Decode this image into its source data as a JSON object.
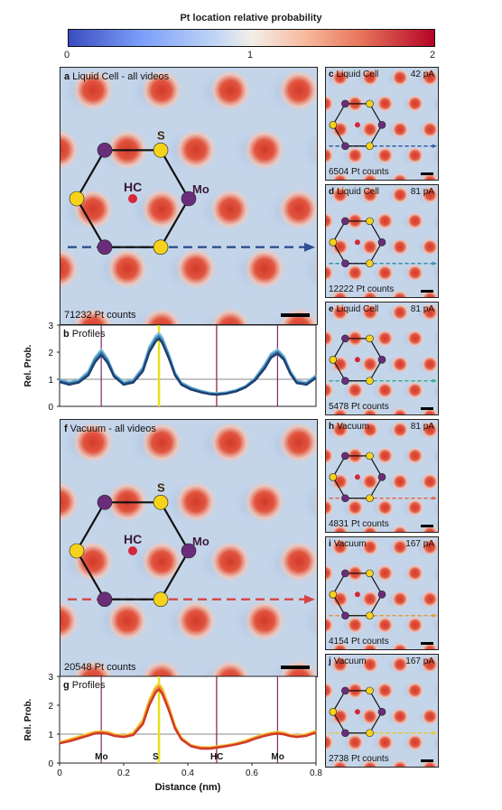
{
  "colorbar": {
    "title": "Pt location relative probability",
    "ticks": [
      "0",
      "1",
      "2"
    ],
    "range": [
      0,
      2
    ]
  },
  "main_panels": [
    {
      "letter": "a",
      "title": "Liquid Cell - all videos",
      "count": "71232 Pt counts",
      "hc_label": "HC",
      "s_label": "S",
      "mo_label": "Mo",
      "arrow_color": "#2f4f8f"
    },
    {
      "letter": "f",
      "title": "Vacuum - all videos",
      "count": "20548 Pt counts",
      "hc_label": "HC",
      "s_label": "S",
      "mo_label": "Mo",
      "arrow_color": "#d64545"
    }
  ],
  "side_panels": [
    {
      "letter": "c",
      "title": "Liquid Cell",
      "current": "42 pA",
      "count": "6504 Pt counts",
      "arrow_color": "#2f5f9f"
    },
    {
      "letter": "d",
      "title": "Liquid Cell",
      "current": "81 pA",
      "count": "12222 Pt counts",
      "arrow_color": "#3a8fb0"
    },
    {
      "letter": "e",
      "title": "Liquid Cell",
      "current": "81 pA",
      "count": "5478 Pt counts",
      "arrow_color": "#3ab08f"
    },
    {
      "letter": "h",
      "title": "Vacuum",
      "current": "81 pA",
      "count": "4831 Pt counts",
      "arrow_color": "#e06a50"
    },
    {
      "letter": "i",
      "title": "Vacuum",
      "current": "167 pA",
      "count": "4154 Pt counts",
      "arrow_color": "#e8963a"
    },
    {
      "letter": "j",
      "title": "Vacuum",
      "current": "167 pA",
      "count": "2738 Pt counts",
      "arrow_color": "#e8c830"
    }
  ],
  "colors": {
    "sulfur": "#f6d21a",
    "molybdenum": "#6a2d7a",
    "hollow_center": "#d6263a",
    "hot_spot": "#d23a2a",
    "background": "#c4d5ea",
    "mo_line": "#7a2a6a",
    "s_line": "#e8e01a",
    "hc_line": "#8a1a2a"
  },
  "chart_data": [
    {
      "type": "line",
      "panel": "b",
      "title": "Profiles",
      "ylabel": "Rel. Prob.",
      "ylim": [
        0,
        3
      ],
      "xlim": [
        0,
        0.8
      ],
      "yticks": [
        "0",
        "1",
        "2",
        "3"
      ],
      "reference_line": 1,
      "markers_x": [
        0.13,
        0.31,
        0.49,
        0.68
      ],
      "marker_labels": [
        "",
        "",
        "",
        ""
      ],
      "x": [
        0,
        0.03,
        0.06,
        0.09,
        0.11,
        0.13,
        0.15,
        0.17,
        0.2,
        0.23,
        0.26,
        0.28,
        0.3,
        0.31,
        0.32,
        0.34,
        0.36,
        0.38,
        0.41,
        0.44,
        0.47,
        0.49,
        0.52,
        0.55,
        0.58,
        0.61,
        0.64,
        0.66,
        0.68,
        0.7,
        0.72,
        0.74,
        0.77,
        0.8
      ],
      "series": [
        {
          "color": "#7fbfdc",
          "values": [
            1.0,
            0.9,
            0.98,
            1.3,
            1.8,
            2.1,
            1.75,
            1.2,
            0.9,
            0.98,
            1.45,
            2.2,
            2.6,
            2.7,
            2.55,
            1.95,
            1.25,
            0.88,
            0.7,
            0.58,
            0.5,
            0.48,
            0.52,
            0.6,
            0.75,
            1.05,
            1.55,
            1.95,
            2.1,
            1.85,
            1.3,
            0.95,
            0.88,
            1.15
          ]
        },
        {
          "color": "#3a7fb0",
          "values": [
            0.95,
            0.85,
            0.93,
            1.22,
            1.72,
            2.0,
            1.68,
            1.15,
            0.85,
            0.93,
            1.38,
            2.1,
            2.5,
            2.6,
            2.45,
            1.88,
            1.2,
            0.84,
            0.66,
            0.55,
            0.47,
            0.45,
            0.49,
            0.57,
            0.72,
            1.0,
            1.48,
            1.88,
            2.02,
            1.78,
            1.25,
            0.9,
            0.84,
            1.1
          ]
        },
        {
          "color": "#1e3f6f",
          "values": [
            0.9,
            0.8,
            0.88,
            1.15,
            1.62,
            1.9,
            1.6,
            1.1,
            0.8,
            0.88,
            1.3,
            2.0,
            2.4,
            2.5,
            2.35,
            1.8,
            1.15,
            0.8,
            0.62,
            0.52,
            0.45,
            0.43,
            0.47,
            0.55,
            0.7,
            0.96,
            1.4,
            1.8,
            1.95,
            1.72,
            1.2,
            0.86,
            0.8,
            1.05
          ]
        }
      ]
    },
    {
      "type": "line",
      "panel": "g",
      "title": "Profiles",
      "ylabel": "Rel. Prob.",
      "xlabel": "Distance (nm)",
      "ylim": [
        0,
        3
      ],
      "xlim": [
        0,
        0.8
      ],
      "yticks": [
        "0",
        "1",
        "2",
        "3"
      ],
      "xticks": [
        "0",
        "0.2",
        "0.4",
        "0.6",
        "0.8"
      ],
      "reference_line": 1,
      "markers_x": [
        0.13,
        0.31,
        0.49,
        0.68
      ],
      "marker_labels": [
        "Mo",
        "S",
        "HC",
        "Mo"
      ],
      "x": [
        0,
        0.03,
        0.06,
        0.09,
        0.11,
        0.13,
        0.15,
        0.17,
        0.2,
        0.23,
        0.26,
        0.28,
        0.3,
        0.31,
        0.32,
        0.34,
        0.36,
        0.38,
        0.41,
        0.44,
        0.47,
        0.49,
        0.52,
        0.55,
        0.58,
        0.61,
        0.64,
        0.66,
        0.68,
        0.7,
        0.72,
        0.74,
        0.77,
        0.8
      ],
      "series": [
        {
          "color": "#f5d23a",
          "values": [
            0.72,
            0.82,
            0.92,
            1.02,
            1.08,
            1.1,
            1.08,
            1.0,
            0.95,
            1.05,
            1.5,
            2.2,
            2.65,
            2.75,
            2.6,
            2.0,
            1.3,
            0.88,
            0.62,
            0.55,
            0.55,
            0.58,
            0.62,
            0.68,
            0.78,
            0.9,
            1.0,
            1.05,
            1.08,
            1.05,
            0.98,
            0.95,
            1.0,
            1.12
          ]
        },
        {
          "color": "#ef8a35",
          "values": [
            0.7,
            0.78,
            0.88,
            0.98,
            1.05,
            1.07,
            1.04,
            0.97,
            0.92,
            1.0,
            1.42,
            2.1,
            2.55,
            2.65,
            2.5,
            1.92,
            1.25,
            0.85,
            0.6,
            0.53,
            0.52,
            0.55,
            0.6,
            0.66,
            0.75,
            0.87,
            0.97,
            1.02,
            1.05,
            1.02,
            0.95,
            0.92,
            0.97,
            1.08
          ]
        },
        {
          "color": "#cf3a2a",
          "values": [
            0.68,
            0.75,
            0.85,
            0.95,
            1.02,
            1.04,
            1.01,
            0.94,
            0.9,
            0.97,
            1.35,
            2.0,
            2.45,
            2.55,
            2.4,
            1.85,
            1.2,
            0.82,
            0.58,
            0.5,
            0.5,
            0.53,
            0.58,
            0.64,
            0.72,
            0.84,
            0.94,
            0.99,
            1.02,
            0.99,
            0.93,
            0.9,
            0.94,
            1.05
          ]
        }
      ]
    }
  ]
}
